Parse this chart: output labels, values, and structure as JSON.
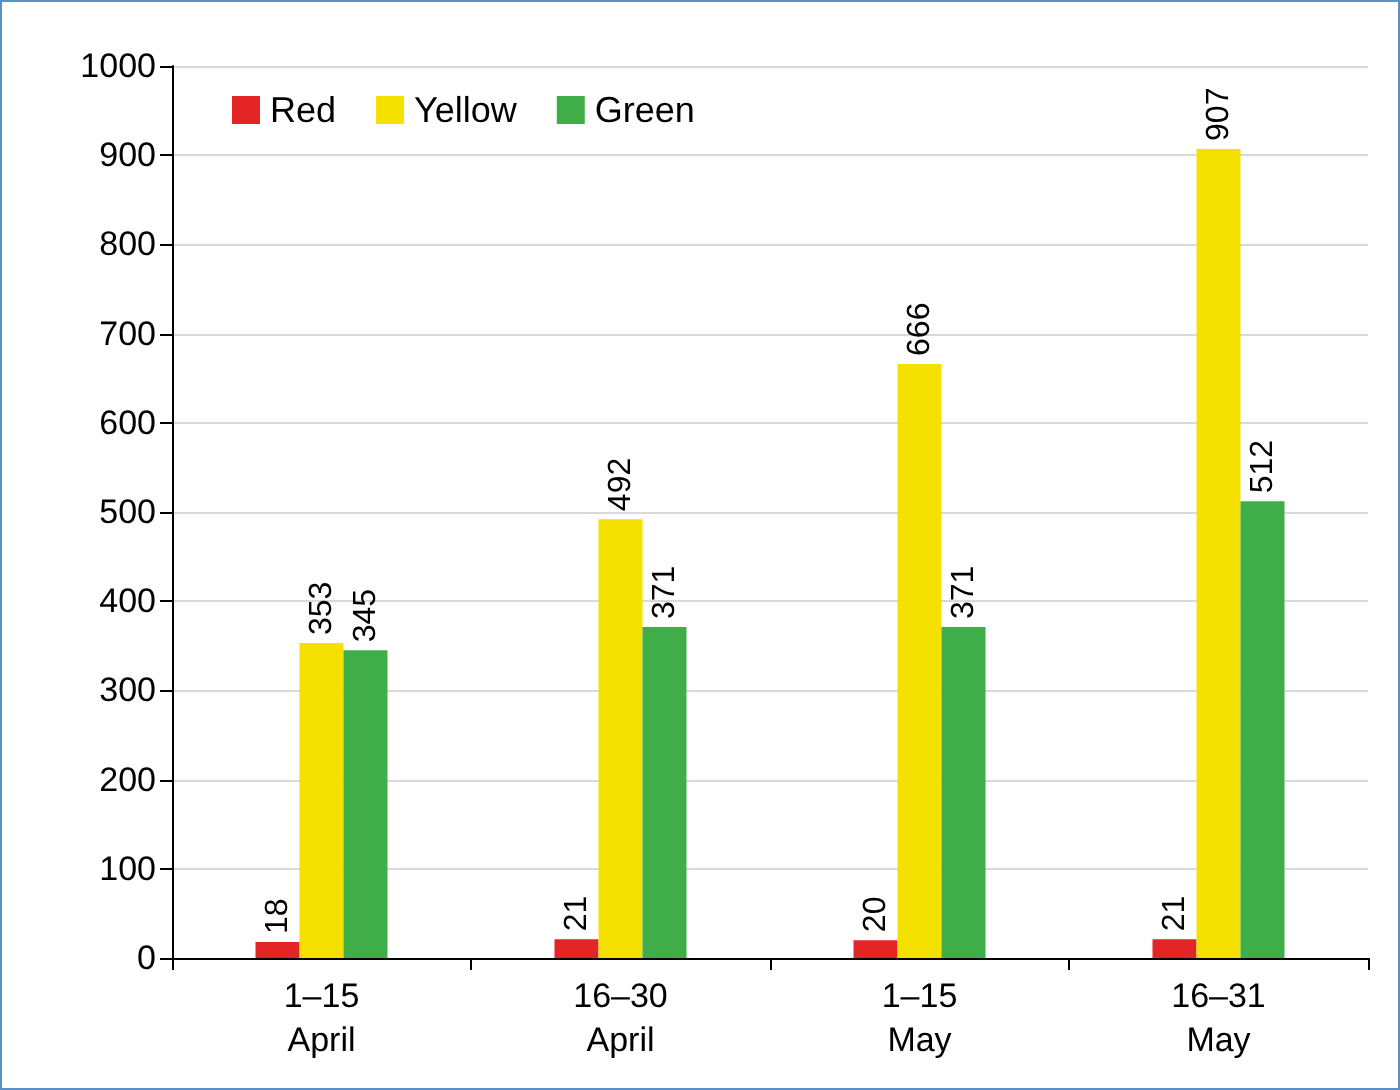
{
  "chart_data": {
    "type": "bar",
    "categories": [
      "1–15\nApril",
      "16–30\nApril",
      "1–15\nMay",
      "16–31\nMay"
    ],
    "series": [
      {
        "name": "Red",
        "color": "#e32526",
        "values": [
          18,
          21,
          20,
          21
        ]
      },
      {
        "name": "Yellow",
        "color": "#f5e100",
        "values": [
          353,
          492,
          666,
          907
        ]
      },
      {
        "name": "Green",
        "color": "#3fae49",
        "values": [
          345,
          371,
          371,
          512
        ]
      }
    ],
    "ylim": [
      0,
      1000
    ],
    "yticks": [
      0,
      100,
      200,
      300,
      400,
      500,
      600,
      700,
      800,
      900,
      1000
    ],
    "grid": "y",
    "legend": "top left",
    "data_labels": true
  }
}
